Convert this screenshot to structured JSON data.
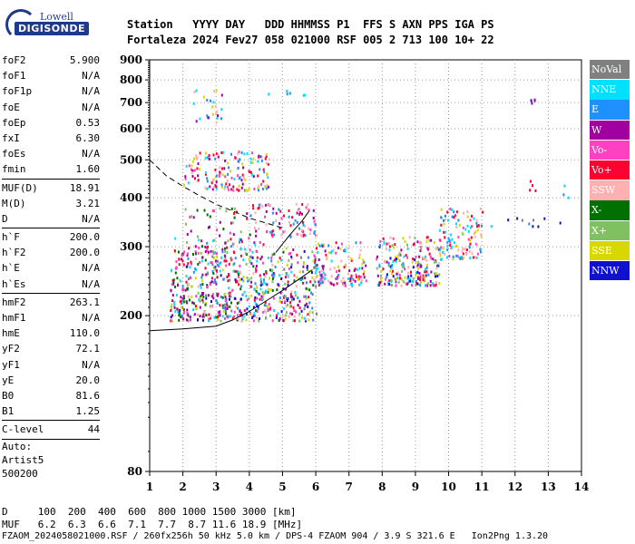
{
  "logo": {
    "line1": "Lowell",
    "line2": "DIGISONDE"
  },
  "header": {
    "line1": "Station   YYYY DAY   DDD HHMMSS P1  FFS S AXN PPS IGA PS",
    "line2": "Fortaleza 2024 Fev27 058 021000 RSF 005 2 713 100 10+ 22"
  },
  "params_group1": [
    {
      "name": "foF2",
      "value": "5.900"
    },
    {
      "name": "foF1",
      "value": "N/A"
    },
    {
      "name": "foF1p",
      "value": "N/A"
    },
    {
      "name": "foE",
      "value": "N/A"
    },
    {
      "name": "foEp",
      "value": "0.53"
    },
    {
      "name": "fxI",
      "value": "6.30"
    },
    {
      "name": "foEs",
      "value": "N/A"
    },
    {
      "name": "fmin",
      "value": "1.60"
    }
  ],
  "params_group2": [
    {
      "name": "MUF(D)",
      "value": "18.91"
    },
    {
      "name": "M(D)",
      "value": "3.21"
    },
    {
      "name": "D",
      "value": "N/A"
    }
  ],
  "params_group3": [
    {
      "name": "h`F",
      "value": "200.0"
    },
    {
      "name": "h`F2",
      "value": "200.0"
    },
    {
      "name": "h`E",
      "value": "N/A"
    },
    {
      "name": "h`Es",
      "value": "N/A"
    }
  ],
  "params_group4": [
    {
      "name": "hmF2",
      "value": "263.1"
    },
    {
      "name": "hmF1",
      "value": "N/A"
    },
    {
      "name": "hmE",
      "value": "110.0"
    },
    {
      "name": "yF2",
      "value": "72.1"
    },
    {
      "name": "yF1",
      "value": "N/A"
    },
    {
      "name": "yE",
      "value": "20.0"
    },
    {
      "name": "B0",
      "value": "81.6"
    },
    {
      "name": "B1",
      "value": "1.25"
    }
  ],
  "params_group5": [
    {
      "name": "C-level",
      "value": "44"
    }
  ],
  "auto": {
    "line1": "Auto:",
    "line2": "Artist5",
    "line3": "500200"
  },
  "bottom": {
    "d_line": "D     100  200  400  600  800 1000 1500 3000 [km]",
    "muf_line": "MUF   6.2  6.3  6.6  7.1  7.7  8.7 11.6 18.9 [MHz]",
    "file_line": "FZAOM_2024058021000.RSF / 260fx256h 50 kHz 5.0 km / DPS-4 FZAOM 904 / 3.9 S 321.6 E   Ion2Png 1.3.20"
  },
  "legend": [
    {
      "label": "NoVal",
      "color": "#808080"
    },
    {
      "label": "NNE",
      "color": "#00e0ff"
    },
    {
      "label": "E",
      "color": "#1e90ff"
    },
    {
      "label": "W",
      "color": "#a000a0"
    },
    {
      "label": "Vo-",
      "color": "#ff40c0"
    },
    {
      "label": "Vo+",
      "color": "#ff0030"
    },
    {
      "label": "SSW",
      "color": "#ffb0b0"
    },
    {
      "label": "X-",
      "color": "#007000"
    },
    {
      "label": "X+",
      "color": "#80c060"
    },
    {
      "label": "SSE",
      "color": "#d8d800"
    },
    {
      "label": "NNW",
      "color": "#1010d0"
    }
  ],
  "chart_data": {
    "type": "scatter",
    "xlabel": "",
    "ylabel": "",
    "xlim": [
      1,
      14
    ],
    "ylim_log": [
      80,
      900
    ],
    "x_ticks": [
      1,
      2,
      3,
      4,
      5,
      6,
      7,
      8,
      9,
      10,
      11,
      12,
      13,
      14
    ],
    "y_ticks": [
      80,
      200,
      300,
      400,
      500,
      600,
      700,
      800,
      900
    ],
    "y_scale": "log",
    "grid": "dotted",
    "curves": [
      {
        "name": "dashed",
        "style": "dashed",
        "x": [
          1.0,
          1.5,
          2.0,
          2.5,
          3.0,
          3.5,
          4.0,
          4.5,
          5.0
        ],
        "y": [
          500,
          455,
          428,
          405,
          385,
          370,
          355,
          345,
          335
        ]
      },
      {
        "name": "solid-low",
        "style": "solid",
        "x": [
          1.0,
          2.0,
          3.0,
          3.5,
          4.0,
          4.5,
          5.0,
          5.5,
          5.9
        ],
        "y": [
          183,
          185,
          188,
          195,
          205,
          218,
          232,
          248,
          262
        ]
      },
      {
        "name": "solid-up",
        "style": "solid",
        "x": [
          4.8,
          5.0,
          5.2,
          5.4,
          5.6,
          5.8
        ],
        "y": [
          290,
          305,
          320,
          335,
          350,
          370
        ]
      }
    ],
    "clusters": [
      {
        "x": [
          1.6,
          6.0
        ],
        "y": [
          195,
          300
        ],
        "count": 520,
        "colors": [
          5,
          4,
          3,
          1,
          2,
          9,
          8,
          6,
          0,
          7,
          10
        ]
      },
      {
        "x": [
          1.6,
          4.5
        ],
        "y": [
          200,
          320
        ],
        "count": 160,
        "colors": [
          3,
          4,
          5,
          2,
          1,
          7
        ]
      },
      {
        "x": [
          2.0,
          4.0
        ],
        "y": [
          290,
          380
        ],
        "count": 60,
        "colors": [
          7,
          4,
          5,
          8,
          3
        ]
      },
      {
        "x": [
          4.0,
          6.0
        ],
        "y": [
          320,
          390
        ],
        "count": 90,
        "colors": [
          5,
          4,
          6,
          3,
          2
        ]
      },
      {
        "x": [
          2.0,
          4.6
        ],
        "y": [
          420,
          530
        ],
        "count": 160,
        "colors": [
          5,
          4,
          3,
          2,
          9,
          6,
          1
        ]
      },
      {
        "x": [
          2.3,
          3.2
        ],
        "y": [
          625,
          770
        ],
        "count": 25,
        "colors": [
          1,
          2,
          9,
          3,
          6
        ]
      },
      {
        "x": [
          4.5,
          5.8
        ],
        "y": [
          735,
          775
        ],
        "count": 6,
        "colors": [
          1,
          2
        ]
      },
      {
        "x": [
          5.9,
          7.5
        ],
        "y": [
          240,
          310
        ],
        "count": 130,
        "colors": [
          5,
          4,
          1,
          2,
          9,
          6,
          3
        ]
      },
      {
        "x": [
          7.8,
          9.7
        ],
        "y": [
          240,
          320
        ],
        "count": 230,
        "colors": [
          9,
          5,
          4,
          1,
          2,
          3,
          10,
          6,
          8
        ]
      },
      {
        "x": [
          9.7,
          11.0
        ],
        "y": [
          280,
          380
        ],
        "count": 120,
        "colors": [
          9,
          6,
          1,
          2,
          5,
          4
        ]
      },
      {
        "x": [
          11.2,
          13.5
        ],
        "y": [
          340,
          360
        ],
        "count": 10,
        "colors": [
          1,
          10,
          2,
          0
        ]
      },
      {
        "x": [
          12.4,
          12.6
        ],
        "y": [
          700,
          730
        ],
        "count": 4,
        "colors": [
          10,
          3
        ]
      },
      {
        "x": [
          12.4,
          12.6
        ],
        "y": [
          420,
          470
        ],
        "count": 4,
        "colors": [
          10,
          5
        ]
      },
      {
        "x": [
          13.3,
          13.6
        ],
        "y": [
          390,
          445
        ],
        "count": 3,
        "colors": [
          2,
          1
        ]
      }
    ]
  }
}
